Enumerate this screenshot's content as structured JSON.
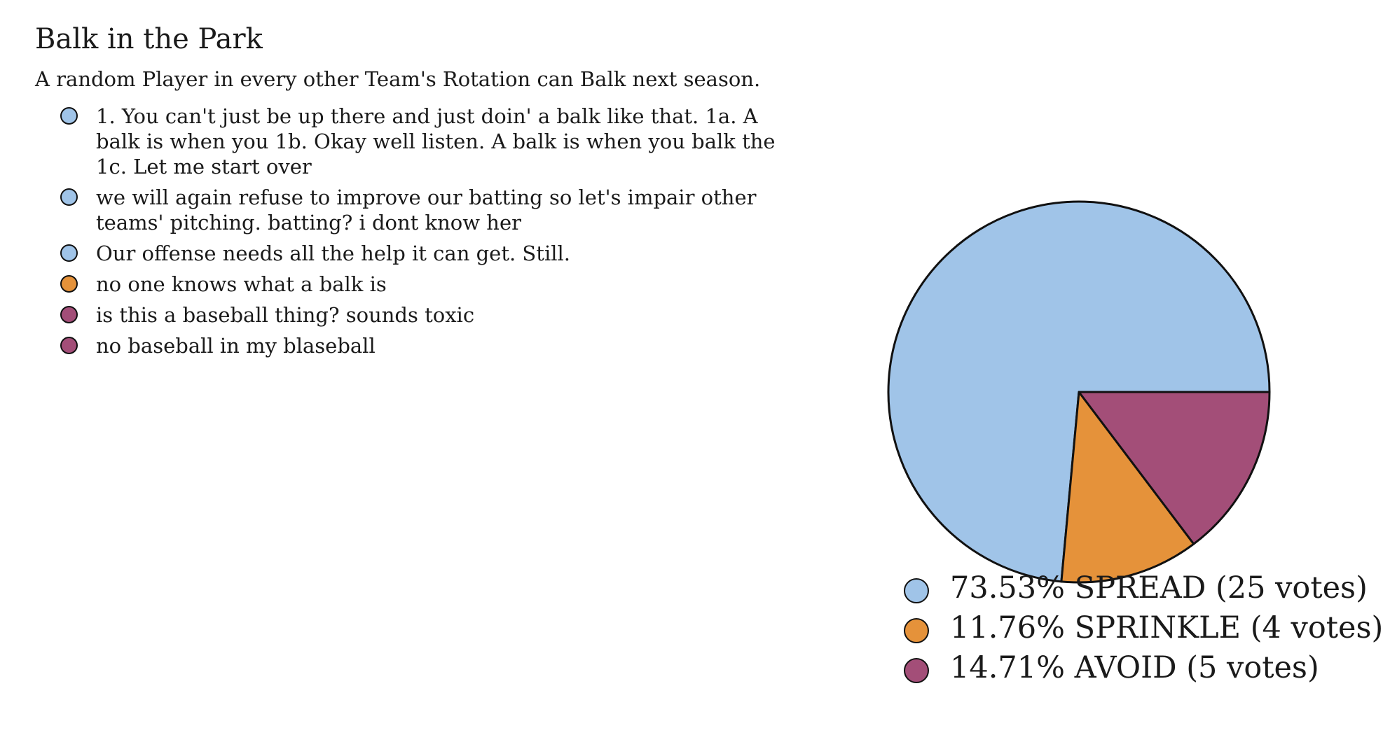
{
  "chart_data": {
    "type": "pie",
    "title": "Balk in the Park",
    "subtitle": "A random Player in every other Team's Rotation can Balk next season.",
    "slices": [
      {
        "label": "SPREAD",
        "percent": 73.53,
        "votes": 25,
        "color": "#a0c4e8",
        "legend_text": "73.53% SPREAD (25 votes)"
      },
      {
        "label": "SPRINKLE",
        "percent": 11.76,
        "votes": 4,
        "color": "#e5923a",
        "legend_text": "11.76% SPRINKLE (4 votes)"
      },
      {
        "label": "AVOID",
        "percent": 14.71,
        "votes": 5,
        "color": "#a34e78",
        "legend_text": "14.71% AVOID (5 votes)"
      }
    ],
    "start_direction": "east",
    "direction": "counterclockwise",
    "legend_position": "bottom-right",
    "comments": [
      {
        "text": "1. You can't just be up there and just doin' a balk like that. 1a. A balk is when you 1b. Okay well listen. A balk is when you balk the 1c. Let me start over",
        "color": "#a0c4e8"
      },
      {
        "text": "we will again refuse to improve our batting so let's impair other teams' pitching. batting? i dont know her",
        "color": "#a0c4e8"
      },
      {
        "text": "Our offense needs all the help it can get. Still.",
        "color": "#a0c4e8"
      },
      {
        "text": "no one knows what a balk is",
        "color": "#e5923a"
      },
      {
        "text": "is this a baseball thing? sounds toxic",
        "color": "#a34e78"
      },
      {
        "text": "no baseball in my blaseball",
        "color": "#a34e78"
      }
    ]
  }
}
